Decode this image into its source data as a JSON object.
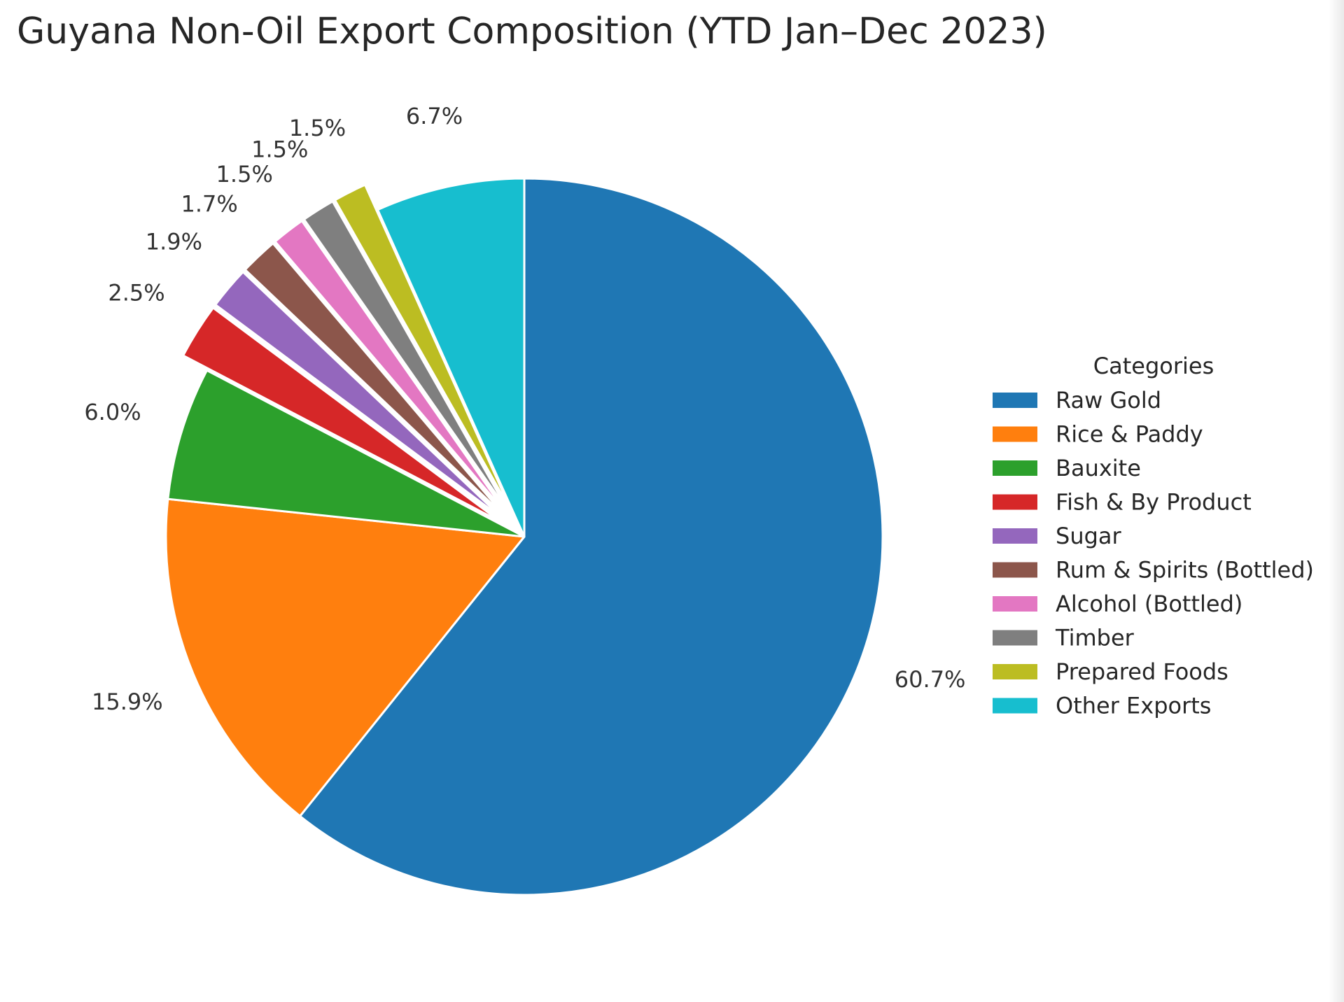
{
  "chart_data": {
    "type": "pie",
    "title": "Guyana Non-Oil Export Composition (YTD Jan–Dec 2023)",
    "legend": {
      "title": "Categories",
      "placement": "right"
    },
    "start_angle_deg": 90,
    "direction": "clockwise",
    "slices": [
      {
        "name": "Raw Gold",
        "value": 60.7,
        "label": "60.7%",
        "color": "#1f77b4",
        "exploded": false
      },
      {
        "name": "Rice & Paddy",
        "value": 15.9,
        "label": "15.9%",
        "color": "#ff7f0e",
        "exploded": false
      },
      {
        "name": "Bauxite",
        "value": 6.0,
        "label": "6.0%",
        "color": "#2ca02c",
        "exploded": false
      },
      {
        "name": "Fish & By Product",
        "value": 2.5,
        "label": "2.5%",
        "color": "#d62728",
        "exploded": true
      },
      {
        "name": "Sugar",
        "value": 1.9,
        "label": "1.9%",
        "color": "#9467bd",
        "exploded": true
      },
      {
        "name": "Rum & Spirits (Bottled)",
        "value": 1.7,
        "label": "1.7%",
        "color": "#8c564b",
        "exploded": true
      },
      {
        "name": "Alcohol (Bottled)",
        "value": 1.5,
        "label": "1.5%",
        "color": "#e377c2",
        "exploded": true
      },
      {
        "name": "Timber",
        "value": 1.5,
        "label": "1.5%",
        "color": "#7f7f7f",
        "exploded": true
      },
      {
        "name": "Prepared Foods",
        "value": 1.5,
        "label": "1.5%",
        "color": "#bcbd22",
        "exploded": true
      },
      {
        "name": "Other Exports",
        "value": 6.7,
        "label": "6.7%",
        "color": "#17becf",
        "exploded": false
      }
    ]
  }
}
